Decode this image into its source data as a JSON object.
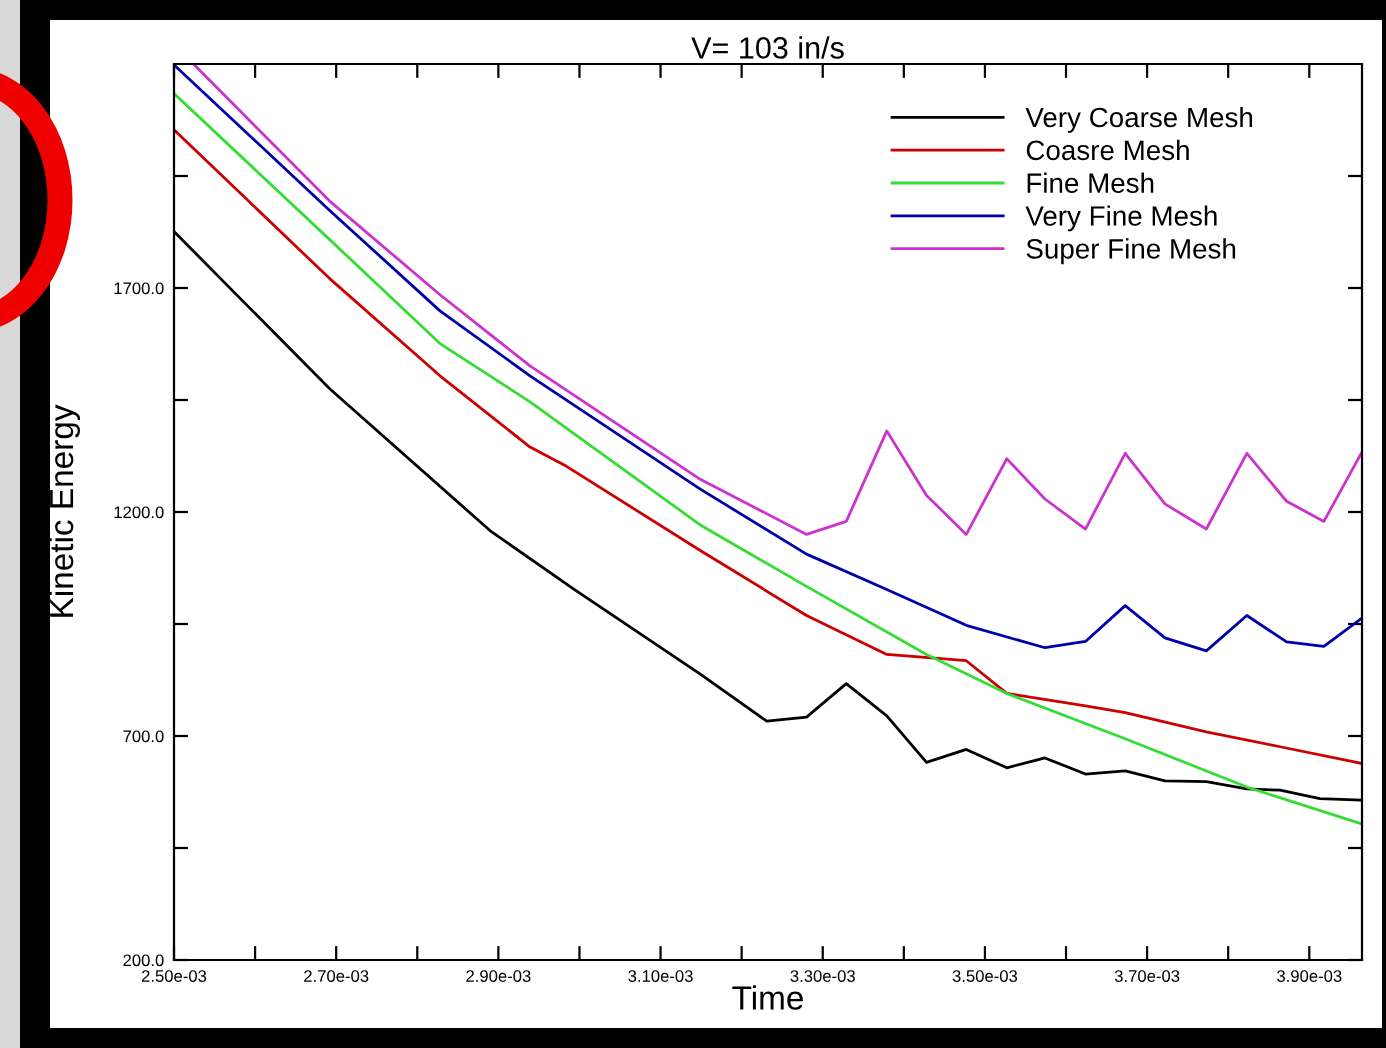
{
  "chart_data": {
    "type": "line",
    "title": "V= 103 in/s",
    "xlabel": "Time",
    "ylabel": "Kinetic Energy",
    "xlim": [
      0.0025,
      0.003965
    ],
    "ylim": [
      200,
      2200
    ],
    "xticks": [
      {
        "value": 0.0025,
        "label": "2.50e-03"
      },
      {
        "value": 0.0026,
        "label": null
      },
      {
        "value": 0.0027,
        "label": "2.70e-03"
      },
      {
        "value": 0.0028,
        "label": null
      },
      {
        "value": 0.0029,
        "label": "2.90e-03"
      },
      {
        "value": 0.003,
        "label": null
      },
      {
        "value": 0.0031,
        "label": "3.10e-03"
      },
      {
        "value": 0.0032,
        "label": null
      },
      {
        "value": 0.0033,
        "label": "3.30e-03"
      },
      {
        "value": 0.0034,
        "label": null
      },
      {
        "value": 0.0035,
        "label": "3.50e-03"
      },
      {
        "value": 0.0036,
        "label": null
      },
      {
        "value": 0.0037,
        "label": "3.70e-03"
      },
      {
        "value": 0.0038,
        "label": null
      },
      {
        "value": 0.0039,
        "label": "3.90e-03"
      }
    ],
    "yticks": [
      {
        "value": 200,
        "label": "200.0"
      },
      {
        "value": 450,
        "label": null
      },
      {
        "value": 700,
        "label": "700.0"
      },
      {
        "value": 950,
        "label": null
      },
      {
        "value": 1200,
        "label": "1200.0"
      },
      {
        "value": 1450,
        "label": null
      },
      {
        "value": 1700,
        "label": "1700.0"
      },
      {
        "value": 1950,
        "label": null
      }
    ],
    "grid": false,
    "legend": "top right",
    "marker": "none",
    "line_style": "solid",
    "series": [
      {
        "name": "Very Coarse Mesh",
        "color": "#000000",
        "x": [
          0.0025,
          0.002692,
          0.00289,
          0.002993,
          0.003149,
          0.003231,
          0.00328,
          0.003329,
          0.003379,
          0.003428,
          0.003477,
          0.003527,
          0.003574,
          0.003624,
          0.003673,
          0.003722,
          0.003773,
          0.003823,
          0.003864,
          0.003913,
          0.003964
        ],
        "values": [
          1826,
          1475,
          1158,
          1028,
          838,
          733,
          742,
          817,
          745,
          641,
          670,
          629,
          651,
          615,
          622,
          600,
          598,
          582,
          579,
          560,
          557
        ]
      },
      {
        "name": "Coasre Mesh",
        "color": "#cc0000",
        "x": [
          0.0025,
          0.002692,
          0.002828,
          0.002939,
          0.002984,
          0.003149,
          0.00328,
          0.003379,
          0.003477,
          0.003527,
          0.003624,
          0.003673,
          0.003773,
          0.003864,
          0.003964
        ],
        "values": [
          2053,
          1721,
          1504,
          1345,
          1302,
          1114,
          969,
          882,
          868,
          795,
          767,
          752,
          709,
          676,
          639
        ]
      },
      {
        "name": "Fine Mesh",
        "color": "#33dd33",
        "x": [
          0.0025,
          0.002692,
          0.002828,
          0.002939,
          0.003149,
          0.00328,
          0.003428,
          0.003527,
          0.003673,
          0.003823,
          0.003964
        ],
        "values": [
          2134,
          1808,
          1576,
          1446,
          1171,
          1034,
          882,
          795,
          694,
          586,
          504
        ]
      },
      {
        "name": "Very Fine Mesh",
        "color": "#0000aa",
        "x": [
          0.0025,
          0.002692,
          0.002828,
          0.002939,
          0.003149,
          0.00328,
          0.003379,
          0.003477,
          0.003574,
          0.003624,
          0.003673,
          0.003722,
          0.003773,
          0.003823,
          0.003872,
          0.003918,
          0.003964
        ],
        "values": [
          2198,
          1873,
          1649,
          1504,
          1251,
          1106,
          1027,
          947,
          897,
          911,
          991,
          919,
          890,
          969,
          910,
          900,
          962
        ]
      },
      {
        "name": "Super Fine Mesh",
        "color": "#cc33cc",
        "x": [
          0.002524,
          0.002692,
          0.002828,
          0.002939,
          0.003149,
          0.00328,
          0.003329,
          0.003379,
          0.003428,
          0.003477,
          0.003527,
          0.003574,
          0.003624,
          0.003673,
          0.003722,
          0.003773,
          0.003823,
          0.003872,
          0.003918,
          0.003964
        ],
        "values": [
          2200,
          1894,
          1685,
          1526,
          1273,
          1150,
          1179,
          1381,
          1237,
          1150,
          1319,
          1229,
          1162,
          1331,
          1218,
          1162,
          1331,
          1224,
          1179,
          1331
        ]
      }
    ]
  }
}
